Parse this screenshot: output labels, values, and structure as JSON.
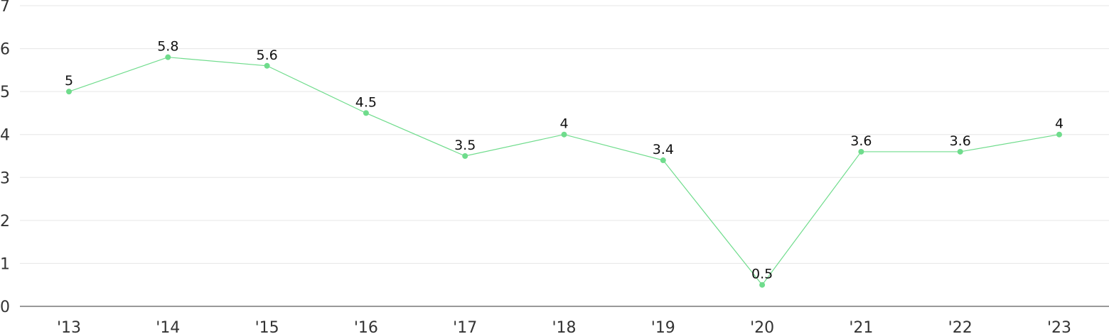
{
  "chart_data": {
    "type": "line",
    "categories": [
      "'13",
      "'14",
      "'15",
      "'16",
      "'17",
      "'18",
      "'19",
      "'20",
      "'21",
      "'22",
      "'23"
    ],
    "series": [
      {
        "values": [
          5,
          5.8,
          5.6,
          4.5,
          3.5,
          4,
          3.4,
          0.5,
          3.6,
          3.6,
          4
        ],
        "labels": [
          "5",
          "5.8",
          "5.6",
          "4.5",
          "3.5",
          "4",
          "3.4",
          "0.5",
          "3.6",
          "3.6",
          "4"
        ],
        "color": "#6fdc8c"
      }
    ],
    "yticks": [
      "0",
      "1",
      "2",
      "3",
      "4",
      "5",
      "6",
      "7"
    ],
    "ylim": [
      0,
      7
    ],
    "grid": true,
    "legend": "none"
  }
}
